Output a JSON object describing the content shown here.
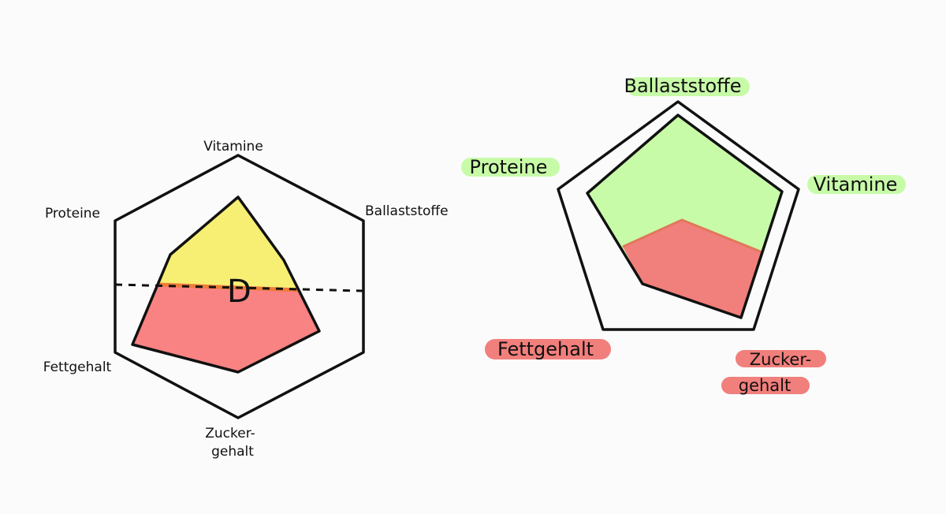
{
  "left_chart": {
    "axes": [
      "Vitamine",
      "Ballaststoffe",
      "Zucker-",
      "gehalt",
      "Fettgehalt",
      "Proteine"
    ],
    "center_letter": "D",
    "colors": {
      "upper_fill": "#f7ef74",
      "lower_fill": "#f98383",
      "divider": "#f07b3a",
      "outline": "#111111"
    }
  },
  "right_chart": {
    "labels": {
      "ballaststoffe": "Ballaststoffe",
      "vitamine": "Vitamine",
      "zucker_line1": "Zucker-",
      "zucker_line2": "gehalt",
      "fettgehalt": "Fettgehalt",
      "proteine": "Proteine"
    },
    "colors": {
      "green": "#c8fba8",
      "red": "#f17f7c",
      "outline": "#111111"
    }
  }
}
